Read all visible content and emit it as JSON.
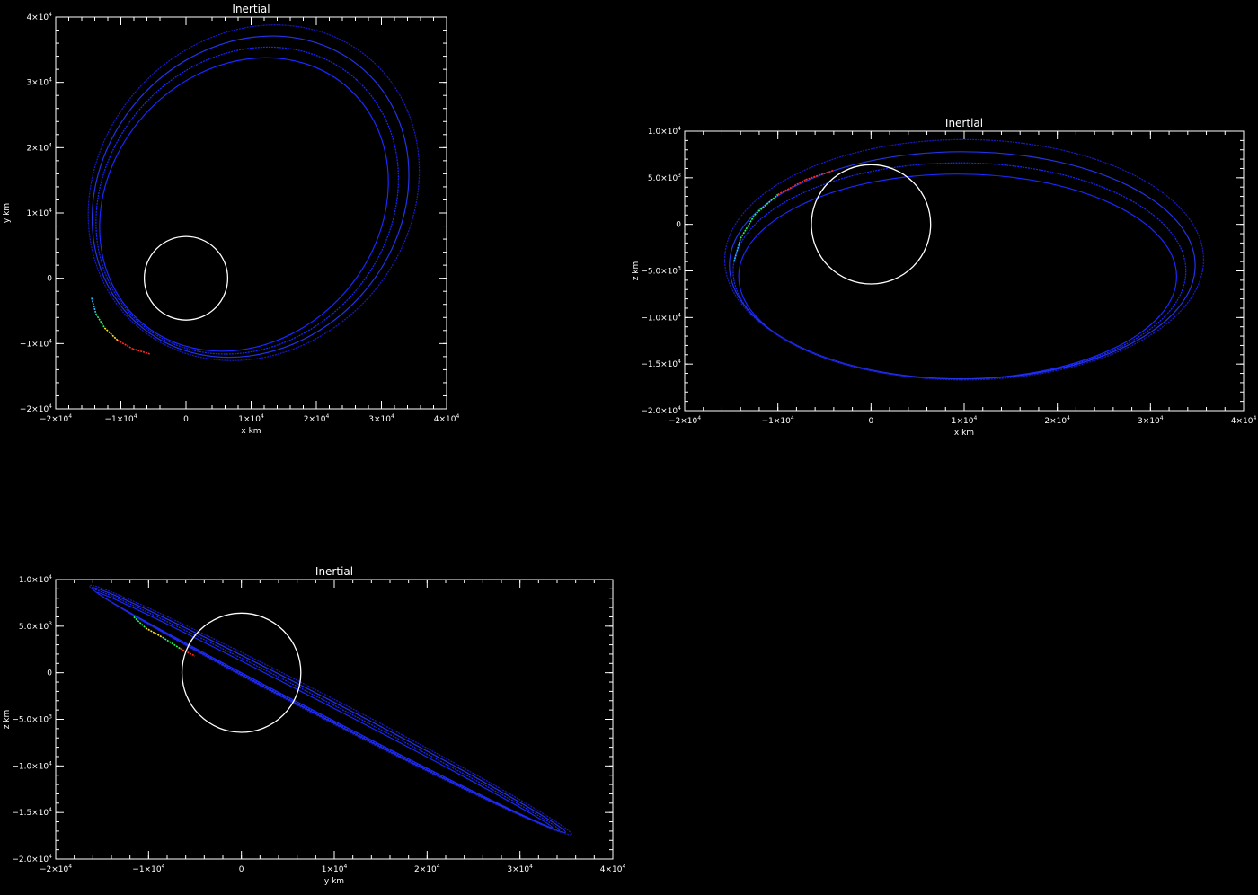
{
  "chart_data": [
    {
      "type": "line",
      "title": "Inertial",
      "xlabel": "x  km",
      "ylabel": "y  km",
      "xlim": [
        -20000,
        40000
      ],
      "ylim": [
        -20000,
        40000
      ],
      "x_ticks": [
        {
          "value": -20000,
          "mant": "−2×10",
          "exp": "4"
        },
        {
          "value": -10000,
          "mant": "−1×10",
          "exp": "4"
        },
        {
          "value": 0,
          "mant": "0",
          "exp": ""
        },
        {
          "value": 10000,
          "mant": "1×10",
          "exp": "4"
        },
        {
          "value": 20000,
          "mant": "2×10",
          "exp": "4"
        },
        {
          "value": 30000,
          "mant": "3×10",
          "exp": "4"
        },
        {
          "value": 40000,
          "mant": "4×10",
          "exp": "4"
        }
      ],
      "y_ticks": [
        {
          "value": -20000,
          "mant": "−2×10",
          "exp": "4"
        },
        {
          "value": -10000,
          "mant": "−1×10",
          "exp": "4"
        },
        {
          "value": 0,
          "mant": "0",
          "exp": ""
        },
        {
          "value": 10000,
          "mant": "1×10",
          "exp": "4"
        },
        {
          "value": 20000,
          "mant": "2×10",
          "exp": "4"
        },
        {
          "value": 30000,
          "mant": "3×10",
          "exp": "4"
        },
        {
          "value": 40000,
          "mant": "4×10",
          "exp": "4"
        }
      ],
      "planet": {
        "cx": 0,
        "cy": 0,
        "r": 6400
      },
      "orbits": [
        {
          "cx": 8900,
          "cy": 11300,
          "a": 24000,
          "b": 20500,
          "angle_deg": 48,
          "color": "#1a28ff"
        },
        {
          "cx": 9400,
          "cy": 11900,
          "a": 25000,
          "b": 21600,
          "angle_deg": 48,
          "color": "#1a28ff"
        },
        {
          "cx": 9900,
          "cy": 12500,
          "a": 26100,
          "b": 22700,
          "angle_deg": 48,
          "color": "#2333e6"
        },
        {
          "cx": 10400,
          "cy": 13100,
          "a": 27200,
          "b": 23800,
          "angle_deg": 48,
          "color": "#1a1acc"
        }
      ],
      "periapsis_arc": {
        "points": [
          [
            -14500,
            -3000
          ],
          [
            -13800,
            -5500
          ],
          [
            -12500,
            -7600
          ],
          [
            -10500,
            -9500
          ],
          [
            -8200,
            -10800
          ],
          [
            -5500,
            -11600
          ]
        ],
        "colors": [
          "#22c0ff",
          "#1fff5a",
          "#ffe81f",
          "#ff2a1f",
          "#ff2a1f",
          "#1fff5a"
        ]
      }
    },
    {
      "type": "line",
      "title": "Inertial",
      "xlabel": "x  km",
      "ylabel": "z  km",
      "xlim": [
        -20000,
        40000
      ],
      "ylim": [
        -20000,
        10000
      ],
      "x_ticks": [
        {
          "value": -20000,
          "mant": "−2×10",
          "exp": "4"
        },
        {
          "value": -10000,
          "mant": "−1×10",
          "exp": "4"
        },
        {
          "value": 0,
          "mant": "0",
          "exp": ""
        },
        {
          "value": 10000,
          "mant": "1×10",
          "exp": "4"
        },
        {
          "value": 20000,
          "mant": "2×10",
          "exp": "4"
        },
        {
          "value": 30000,
          "mant": "3×10",
          "exp": "4"
        },
        {
          "value": 40000,
          "mant": "4×10",
          "exp": "4"
        }
      ],
      "y_ticks": [
        {
          "value": -20000,
          "mant": "−2.0×10",
          "exp": "4"
        },
        {
          "value": -15000,
          "mant": "−1.5×10",
          "exp": "4"
        },
        {
          "value": -10000,
          "mant": "−1.0×10",
          "exp": "4"
        },
        {
          "value": -5000,
          "mant": "−5.0×10",
          "exp": "3"
        },
        {
          "value": 0,
          "mant": "0",
          "exp": ""
        },
        {
          "value": 5000,
          "mant": "5.0×10",
          "exp": "3"
        },
        {
          "value": 10000,
          "mant": "1.0×10",
          "exp": "4"
        }
      ],
      "planet": {
        "cx": 0,
        "cy": 0,
        "r": 6400
      },
      "orbits": [
        {
          "cx": 9300,
          "cy": -5600,
          "a": 23500,
          "b": 11000,
          "angle_deg": 0,
          "color": "#1a28ff"
        },
        {
          "cx": 9500,
          "cy": -5000,
          "a": 24300,
          "b": 11600,
          "angle_deg": 0,
          "color": "#1a28ff"
        },
        {
          "cx": 9800,
          "cy": -4400,
          "a": 25000,
          "b": 12200,
          "angle_deg": 0,
          "color": "#2333e6"
        },
        {
          "cx": 10000,
          "cy": -3800,
          "a": 25700,
          "b": 12900,
          "angle_deg": 0,
          "color": "#1a1acc"
        }
      ],
      "periapsis_arc": {
        "points": [
          [
            -14700,
            -4000
          ],
          [
            -14000,
            -1500
          ],
          [
            -12500,
            1000
          ],
          [
            -10000,
            3200
          ],
          [
            -7000,
            4800
          ],
          [
            -4000,
            5800
          ]
        ],
        "colors": [
          "#22c0ff",
          "#1fff5a",
          "#1fff5a",
          "#ff2a1f",
          "#ff2a1f",
          "#ffe81f"
        ]
      }
    },
    {
      "type": "line",
      "title": "Inertial",
      "xlabel": "y  km",
      "ylabel": "z  km",
      "xlim": [
        -20000,
        40000
      ],
      "ylim": [
        -20000,
        10000
      ],
      "x_ticks": [
        {
          "value": -20000,
          "mant": "−2×10",
          "exp": "4"
        },
        {
          "value": -10000,
          "mant": "−1×10",
          "exp": "4"
        },
        {
          "value": 0,
          "mant": "0",
          "exp": ""
        },
        {
          "value": 10000,
          "mant": "1×10",
          "exp": "4"
        },
        {
          "value": 20000,
          "mant": "2×10",
          "exp": "4"
        },
        {
          "value": 30000,
          "mant": "3×10",
          "exp": "4"
        },
        {
          "value": 40000,
          "mant": "4×10",
          "exp": "4"
        }
      ],
      "y_ticks": [
        {
          "value": -20000,
          "mant": "−2.0×10",
          "exp": "4"
        },
        {
          "value": -15000,
          "mant": "−1.5×10",
          "exp": "4"
        },
        {
          "value": -10000,
          "mant": "−1.0×10",
          "exp": "4"
        },
        {
          "value": -5000,
          "mant": "−5.0×10",
          "exp": "3"
        },
        {
          "value": 0,
          "mant": "0",
          "exp": ""
        },
        {
          "value": 5000,
          "mant": "5.0×10",
          "exp": "3"
        },
        {
          "value": 10000,
          "mant": "1.0×10",
          "exp": "4"
        }
      ],
      "planet": {
        "cx": 0,
        "cy": 0,
        "r": 6400
      },
      "orbits": [
        {
          "cx": 9000,
          "cy": -4000,
          "a": 27600,
          "b": 600,
          "angle_deg": -27.3,
          "color": "#1a28ff"
        },
        {
          "cx": 9200,
          "cy": -4000,
          "a": 28200,
          "b": 800,
          "angle_deg": -27.3,
          "color": "#1a28ff"
        },
        {
          "cx": 9400,
          "cy": -4000,
          "a": 28700,
          "b": 1000,
          "angle_deg": -27.3,
          "color": "#2333e6"
        },
        {
          "cx": 9600,
          "cy": -4000,
          "a": 29200,
          "b": 1200,
          "angle_deg": -27.3,
          "color": "#1a1acc"
        }
      ],
      "periapsis_arc": {
        "points": [
          [
            -11600,
            6000
          ],
          [
            -10300,
            4800
          ],
          [
            -8500,
            3800
          ],
          [
            -6600,
            2600
          ],
          [
            -5000,
            1800
          ]
        ],
        "colors": [
          "#1fff5a",
          "#ffe81f",
          "#1fff5a",
          "#ff2a1f",
          "#1fff5a"
        ]
      }
    }
  ]
}
